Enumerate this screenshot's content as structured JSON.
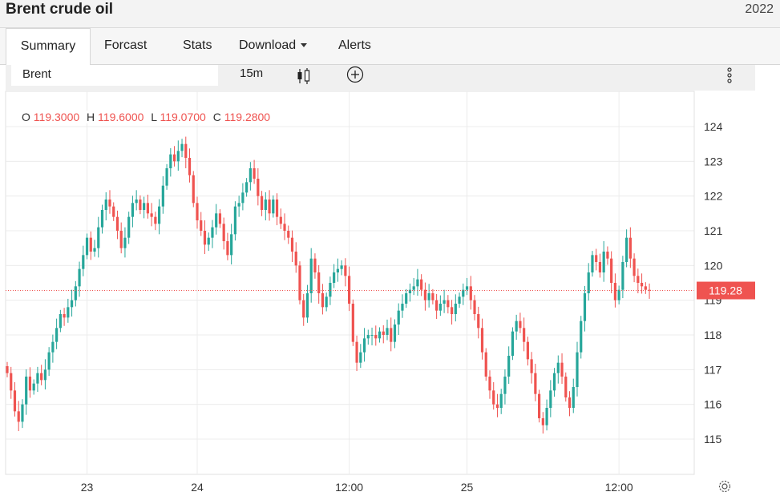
{
  "header": {
    "title": "Brent crude oil",
    "year": "2022"
  },
  "tabs": [
    {
      "label": "Summary"
    },
    {
      "label": "Forcast"
    },
    {
      "label": "Stats"
    },
    {
      "label": "Download"
    },
    {
      "label": "Alerts"
    }
  ],
  "toolbar": {
    "symbol": "Brent",
    "interval": "15m",
    "chart_type_icon": "candlestick-icon",
    "add_icon": "plus-circle-icon",
    "more_icon": "more-vertical-icon"
  },
  "ohlc": {
    "o_label": "O",
    "o": "119.3000",
    "h_label": "H",
    "h": "119.6000",
    "l_label": "L",
    "l": "119.0700",
    "c_label": "C",
    "c": "119.2800"
  },
  "colors": {
    "up": "#26a69a",
    "down": "#ef5350",
    "grid": "#ececec"
  },
  "chart_data": {
    "type": "candlestick",
    "last_price": "119.28",
    "last_value": 119.28,
    "y_ticks": [
      "124",
      "123",
      "122",
      "121",
      "120",
      "119",
      "118",
      "117",
      "116",
      "115"
    ],
    "ylim": [
      115,
      124
    ],
    "x_ticks": [
      "23",
      "24",
      "12:00",
      "25",
      "12:00"
    ],
    "x_tick_index": [
      21,
      50,
      90,
      121,
      161
    ],
    "closes": [
      116.9,
      116.4,
      115.8,
      115.5,
      116.0,
      116.8,
      116.4,
      116.6,
      116.9,
      116.7,
      117.0,
      117.5,
      117.8,
      118.2,
      118.6,
      118.5,
      118.8,
      119.0,
      119.4,
      119.9,
      120.3,
      120.8,
      120.4,
      120.5,
      121.1,
      121.6,
      121.9,
      121.7,
      121.4,
      121.0,
      120.5,
      120.8,
      121.4,
      121.8,
      121.9,
      121.6,
      121.8,
      121.5,
      121.4,
      121.2,
      121.7,
      122.3,
      122.8,
      123.2,
      123.0,
      123.3,
      123.5,
      123.1,
      122.6,
      121.8,
      121.3,
      121.0,
      120.6,
      120.8,
      121.1,
      121.5,
      121.2,
      120.7,
      120.3,
      120.9,
      121.7,
      121.8,
      122.1,
      122.4,
      122.8,
      122.5,
      122.0,
      121.6,
      121.9,
      121.5,
      121.9,
      121.4,
      121.2,
      121.0,
      120.8,
      120.4,
      120.0,
      119.0,
      118.5,
      119.2,
      120.2,
      119.8,
      119.2,
      118.8,
      119.1,
      119.5,
      119.8,
      119.9,
      120.0,
      119.7,
      118.9,
      117.8,
      117.2,
      117.5,
      117.9,
      118.0,
      118.0,
      117.9,
      118.1,
      118.0,
      118.2,
      117.8,
      118.3,
      118.7,
      118.9,
      119.2,
      119.3,
      119.4,
      119.6,
      119.3,
      119.0,
      119.2,
      119.0,
      118.7,
      118.9,
      119.0,
      118.8,
      118.6,
      118.9,
      119.1,
      119.3,
      119.4,
      119.0,
      118.6,
      118.2,
      117.5,
      116.8,
      116.4,
      116.0,
      115.9,
      116.3,
      116.8,
      117.4,
      118.1,
      118.4,
      118.2,
      117.8,
      117.3,
      116.9,
      116.3,
      115.6,
      115.4,
      115.9,
      116.4,
      116.9,
      117.2,
      116.8,
      116.2,
      115.9,
      116.5,
      117.5,
      118.4,
      119.2,
      119.8,
      120.3,
      120.1,
      119.8,
      120.4,
      120.2,
      119.5,
      119.0,
      119.3,
      120.1,
      120.8,
      120.2,
      119.7,
      119.5,
      119.4,
      119.3,
      119.28
    ],
    "last_index": 178
  }
}
